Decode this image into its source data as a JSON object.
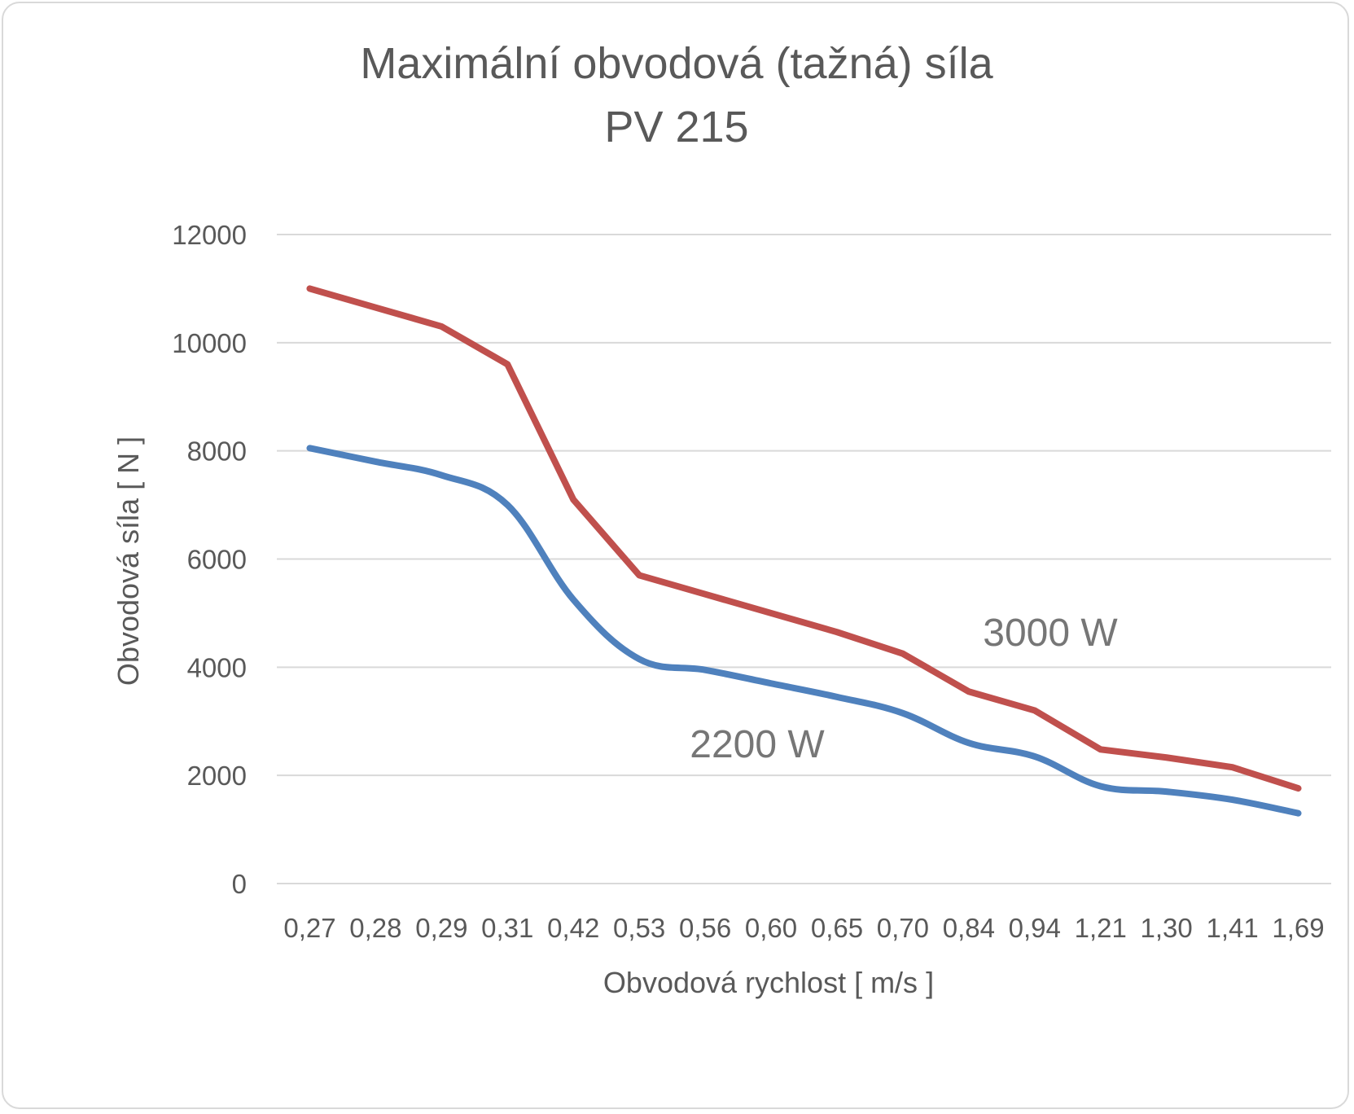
{
  "chart_data": {
    "type": "line",
    "title": "Maximální obvodová (tažná) síla",
    "subtitle": "PV 215",
    "xlabel": "Obvodová rychlost  [ m/s ]",
    "ylabel": "Obvodová síla  [ N ]",
    "categories": [
      "0,27",
      "0,28",
      "0,29",
      "0,31",
      "0,42",
      "0,53",
      "0,56",
      "0,60",
      "0,65",
      "0,70",
      "0,84",
      "0,94",
      "1,21",
      "1,30",
      "1,41",
      "1,69"
    ],
    "ylim": [
      0,
      12000
    ],
    "yticks": [
      "0",
      "2000",
      "4000",
      "6000",
      "8000",
      "10000",
      "12000"
    ],
    "grid": true,
    "legend": "none",
    "series": [
      {
        "name": "3000 W",
        "color": "#c0504d",
        "smooth": false,
        "values": [
          11000,
          10650,
          10300,
          9600,
          7100,
          5700,
          5350,
          5000,
          4650,
          4250,
          3550,
          3200,
          2480,
          2330,
          2150,
          1760
        ]
      },
      {
        "name": "2200 W",
        "color": "#4f81bd",
        "smooth": true,
        "values": [
          8050,
          7800,
          7550,
          7000,
          5250,
          4150,
          3950,
          3700,
          3450,
          3150,
          2600,
          2350,
          1800,
          1700,
          1550,
          1300
        ]
      }
    ]
  }
}
